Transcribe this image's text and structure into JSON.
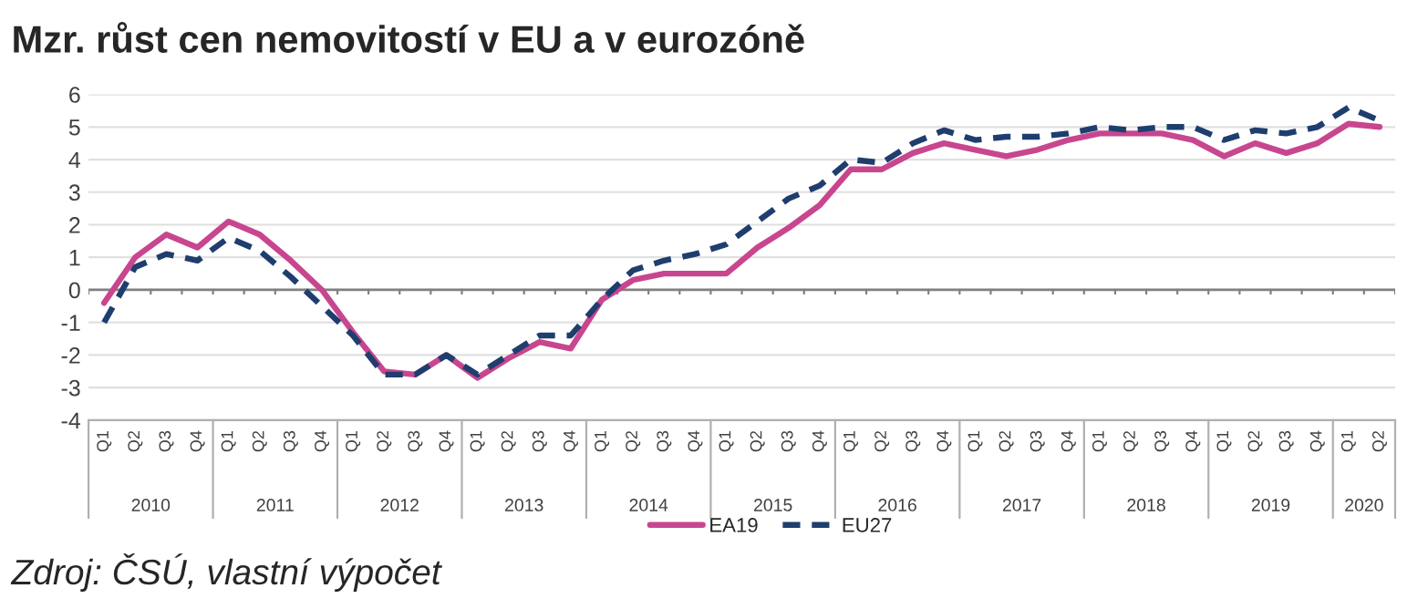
{
  "chart_data": {
    "type": "line",
    "title": "Mzr. růst cen nemovitostí v EU a v eurozóně",
    "categories": [
      "Q1",
      "Q2",
      "Q3",
      "Q4",
      "Q1",
      "Q2",
      "Q3",
      "Q4",
      "Q1",
      "Q2",
      "Q3",
      "Q4",
      "Q1",
      "Q2",
      "Q3",
      "Q4",
      "Q1",
      "Q2",
      "Q3",
      "Q4",
      "Q1",
      "Q2",
      "Q3",
      "Q4",
      "Q1",
      "Q2",
      "Q3",
      "Q4",
      "Q1",
      "Q2",
      "Q3",
      "Q4",
      "Q1",
      "Q2",
      "Q3",
      "Q4",
      "Q1",
      "Q2",
      "Q3",
      "Q4",
      "Q1",
      "Q2"
    ],
    "series": [
      {
        "name": "EA19",
        "color": "#c8468f",
        "line_style": "solid",
        "values": [
          -0.4,
          1.0,
          1.7,
          1.3,
          2.1,
          1.7,
          0.9,
          0.0,
          -1.3,
          -2.5,
          -2.6,
          -2.0,
          -2.7,
          -2.1,
          -1.6,
          -1.8,
          -0.3,
          0.3,
          0.5,
          0.5,
          0.5,
          1.3,
          1.9,
          2.6,
          3.7,
          3.7,
          4.2,
          4.5,
          4.3,
          4.1,
          4.3,
          4.6,
          4.8,
          4.8,
          4.8,
          4.6,
          4.1,
          4.5,
          4.2,
          4.5,
          5.1,
          5.0
        ]
      },
      {
        "name": "EU27",
        "color": "#1f3e6e",
        "line_style": "dashed",
        "values": [
          -1.0,
          0.7,
          1.1,
          0.9,
          1.6,
          1.2,
          0.4,
          -0.5,
          -1.4,
          -2.6,
          -2.6,
          -2.0,
          -2.6,
          -2.0,
          -1.4,
          -1.4,
          -0.3,
          0.6,
          0.9,
          1.1,
          1.4,
          2.1,
          2.8,
          3.2,
          4.0,
          3.9,
          4.5,
          4.9,
          4.6,
          4.7,
          4.7,
          4.8,
          5.0,
          4.9,
          5.0,
          5.0,
          4.6,
          4.9,
          4.8,
          5.0,
          5.6,
          5.2
        ]
      }
    ],
    "ylim": [
      -4,
      6
    ],
    "yticks": [
      -4,
      -3,
      -2,
      -1,
      0,
      1,
      2,
      3,
      4,
      5,
      6
    ],
    "grid": "y",
    "legend": "bottom",
    "marker": "none",
    "ref_lines": [
      {
        "axis": "y",
        "value": 0,
        "color": "#808080"
      }
    ],
    "annotations": [
      "2010",
      "2011",
      "2012",
      "2013",
      "2014",
      "2015",
      "2016",
      "2017",
      "2018",
      "2019",
      "2020",
      "Zdroj: ČSÚ, vlastní výpočet"
    ]
  }
}
